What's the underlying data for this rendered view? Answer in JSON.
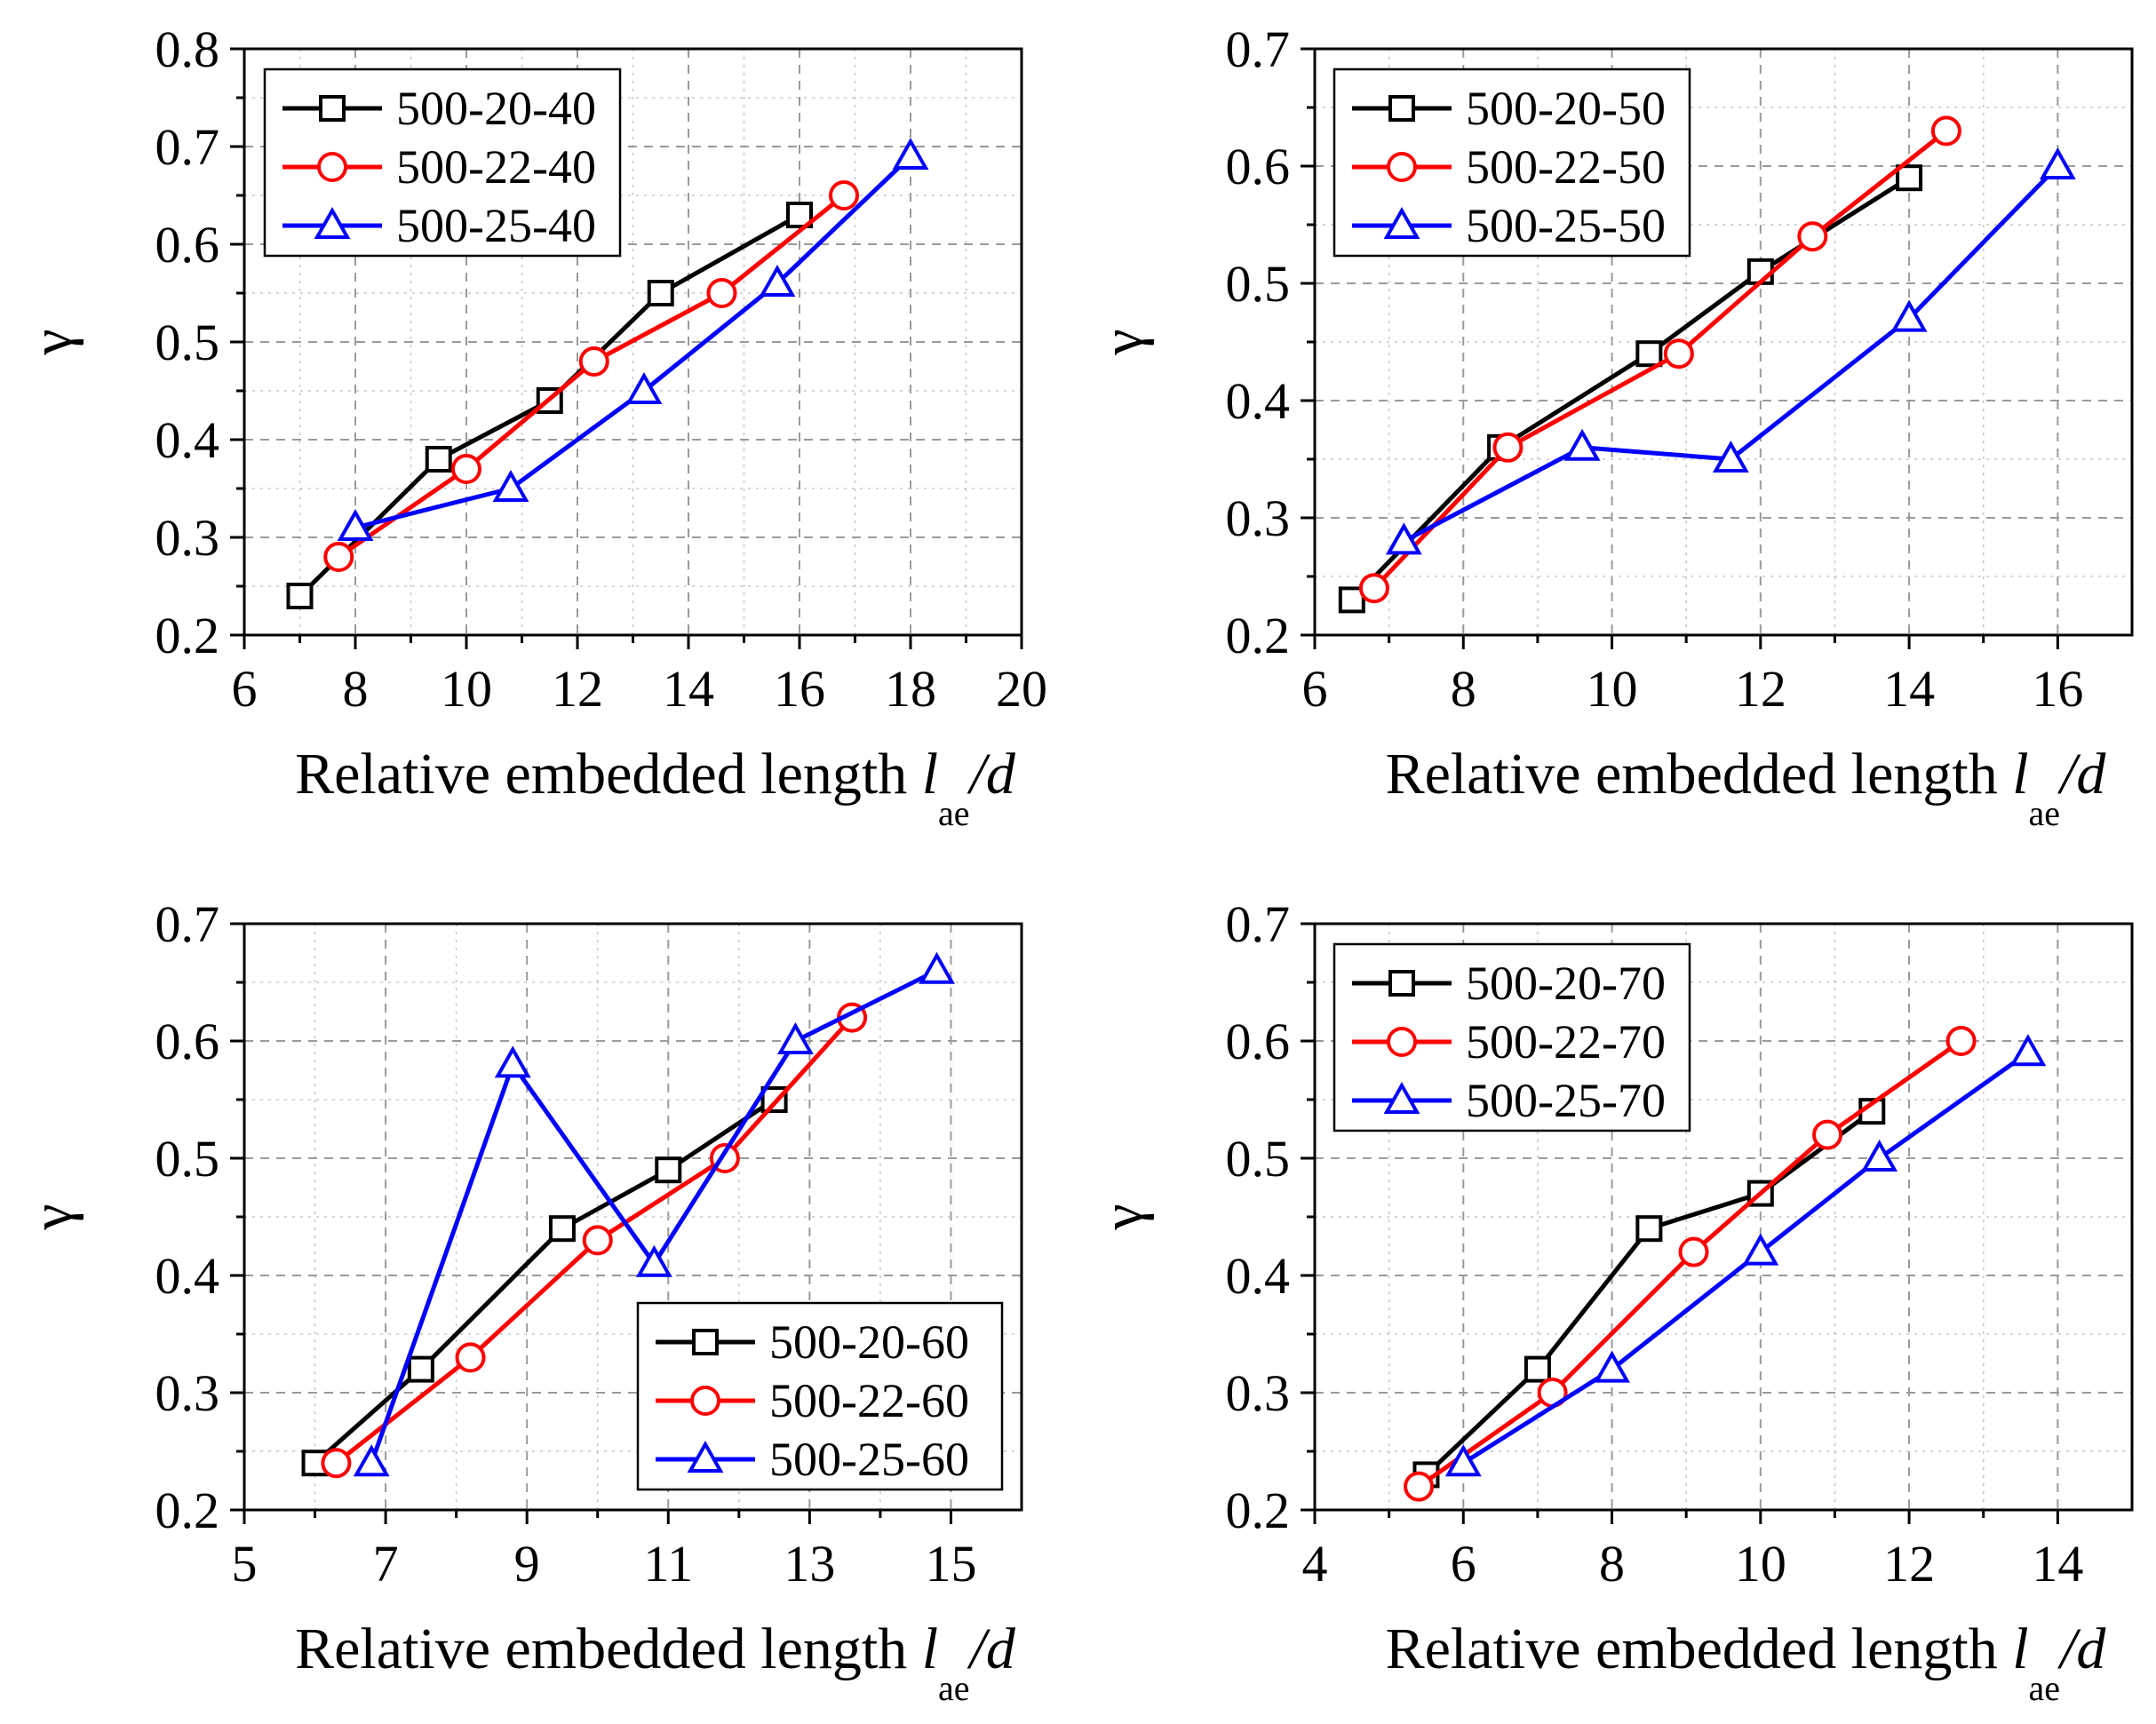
{
  "figure": {
    "background": "#ffffff"
  },
  "chart_data": [
    {
      "type": "line",
      "title": "",
      "xlabel": "Relative embedded length ",
      "xlabel_italic": "l",
      "xlabel_sub": "ae",
      "xlabel_tail": "/d",
      "ylabel": "γ",
      "xlim": [
        6,
        20
      ],
      "ylim": [
        0.2,
        0.8
      ],
      "xticks": [
        6,
        8,
        10,
        12,
        14,
        16,
        18,
        20
      ],
      "xtick_labels": [
        "6",
        "8",
        "10",
        "12",
        "14",
        "16",
        "18",
        "20"
      ],
      "yticks": [
        0.2,
        0.3,
        0.4,
        0.5,
        0.6,
        0.7,
        0.8
      ],
      "ytick_labels": [
        "0.2",
        "0.3",
        "0.4",
        "0.5",
        "0.6",
        "0.7",
        "0.8"
      ],
      "grid": true,
      "legend_position": "top-left",
      "series": [
        {
          "name": "500-20-40",
          "color": "#000000",
          "marker": "square",
          "x": [
            7.0,
            9.5,
            11.5,
            13.5,
            16.0
          ],
          "y": [
            0.24,
            0.38,
            0.44,
            0.55,
            0.63
          ]
        },
        {
          "name": "500-22-40",
          "color": "#ff0000",
          "marker": "circle",
          "x": [
            7.7,
            10.0,
            12.3,
            14.6,
            16.8
          ],
          "y": [
            0.28,
            0.37,
            0.48,
            0.55,
            0.65
          ]
        },
        {
          "name": "500-25-40",
          "color": "#0000ff",
          "marker": "triangle",
          "x": [
            8.0,
            10.8,
            13.2,
            15.6,
            18.0
          ],
          "y": [
            0.31,
            0.35,
            0.45,
            0.56,
            0.69
          ]
        }
      ]
    },
    {
      "type": "line",
      "title": "",
      "xlabel": "Relative embedded length ",
      "xlabel_italic": "l",
      "xlabel_sub": "ae",
      "xlabel_tail": "/d",
      "ylabel": "γ",
      "xlim": [
        6,
        17
      ],
      "ylim": [
        0.2,
        0.7
      ],
      "xticks": [
        6,
        8,
        10,
        12,
        14,
        16
      ],
      "xtick_labels": [
        "6",
        "8",
        "10",
        "12",
        "14",
        "16"
      ],
      "yticks": [
        0.2,
        0.3,
        0.4,
        0.5,
        0.6,
        0.7
      ],
      "ytick_labels": [
        "0.2",
        "0.3",
        "0.4",
        "0.5",
        "0.6",
        "0.7"
      ],
      "grid": true,
      "legend_position": "top-left",
      "series": [
        {
          "name": "500-20-50",
          "color": "#000000",
          "marker": "square",
          "x": [
            6.5,
            8.5,
            10.5,
            12.0,
            14.0
          ],
          "y": [
            0.23,
            0.36,
            0.44,
            0.51,
            0.59
          ]
        },
        {
          "name": "500-22-50",
          "color": "#ff0000",
          "marker": "circle",
          "x": [
            6.8,
            8.6,
            10.9,
            12.7,
            14.5
          ],
          "y": [
            0.24,
            0.36,
            0.44,
            0.54,
            0.63
          ]
        },
        {
          "name": "500-25-50",
          "color": "#0000ff",
          "marker": "triangle",
          "x": [
            7.2,
            9.6,
            11.6,
            14.0,
            16.0
          ],
          "y": [
            0.28,
            0.36,
            0.35,
            0.47,
            0.6
          ]
        }
      ]
    },
    {
      "type": "line",
      "title": "",
      "xlabel": "Relative embedded length ",
      "xlabel_italic": "l",
      "xlabel_sub": "ae",
      "xlabel_tail": "/d",
      "ylabel": "γ",
      "xlim": [
        5,
        16
      ],
      "ylim": [
        0.2,
        0.7
      ],
      "xticks": [
        5,
        7,
        9,
        11,
        13,
        15
      ],
      "xtick_labels": [
        "5",
        "7",
        "9",
        "11",
        "13",
        "15"
      ],
      "yticks": [
        0.2,
        0.3,
        0.4,
        0.5,
        0.6,
        0.7
      ],
      "ytick_labels": [
        "0.2",
        "0.3",
        "0.4",
        "0.5",
        "0.6",
        "0.7"
      ],
      "grid": true,
      "legend_position": "bottom-right",
      "series": [
        {
          "name": "500-20-60",
          "color": "#000000",
          "marker": "square",
          "x": [
            6.0,
            7.5,
            9.5,
            11.0,
            12.5
          ],
          "y": [
            0.24,
            0.32,
            0.44,
            0.49,
            0.55
          ]
        },
        {
          "name": "500-22-60",
          "color": "#ff0000",
          "marker": "circle",
          "x": [
            6.3,
            8.2,
            10.0,
            11.8,
            13.6
          ],
          "y": [
            0.24,
            0.33,
            0.43,
            0.5,
            0.62
          ]
        },
        {
          "name": "500-25-60",
          "color": "#0000ff",
          "marker": "triangle",
          "x": [
            6.8,
            8.8,
            10.8,
            12.8,
            14.8
          ],
          "y": [
            0.24,
            0.58,
            0.41,
            0.6,
            0.66
          ]
        }
      ]
    },
    {
      "type": "line",
      "title": "",
      "xlabel": "Relative embedded length ",
      "xlabel_italic": "l",
      "xlabel_sub": "ae",
      "xlabel_tail": "/d",
      "ylabel": "γ",
      "xlim": [
        4,
        15
      ],
      "ylim": [
        0.2,
        0.7
      ],
      "xticks": [
        4,
        6,
        8,
        10,
        12,
        14
      ],
      "xtick_labels": [
        "4",
        "6",
        "8",
        "10",
        "12",
        "14"
      ],
      "yticks": [
        0.2,
        0.3,
        0.4,
        0.5,
        0.6,
        0.7
      ],
      "ytick_labels": [
        "0.2",
        "0.3",
        "0.4",
        "0.5",
        "0.6",
        "0.7"
      ],
      "grid": true,
      "legend_position": "top-left",
      "series": [
        {
          "name": "500-20-70",
          "color": "#000000",
          "marker": "square",
          "x": [
            5.5,
            7.0,
            8.5,
            10.0,
            11.5
          ],
          "y": [
            0.23,
            0.32,
            0.44,
            0.47,
            0.54
          ]
        },
        {
          "name": "500-22-70",
          "color": "#ff0000",
          "marker": "circle",
          "x": [
            5.4,
            7.2,
            9.1,
            10.9,
            12.7
          ],
          "y": [
            0.22,
            0.3,
            0.42,
            0.52,
            0.6
          ]
        },
        {
          "name": "500-25-70",
          "color": "#0000ff",
          "marker": "triangle",
          "x": [
            6.0,
            8.0,
            10.0,
            11.6,
            13.6
          ],
          "y": [
            0.24,
            0.32,
            0.42,
            0.5,
            0.59
          ]
        }
      ]
    }
  ]
}
